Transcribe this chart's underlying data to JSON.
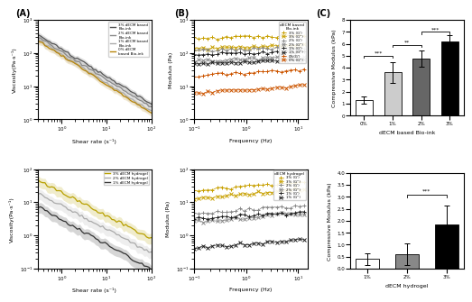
{
  "panel_A_top": {
    "title": "(A)",
    "xlabel": "Shear rate (s⁻¹)",
    "ylabel": "Viscosity(Pa·s⁻¹)",
    "xlim": [
      0.3,
      100
    ],
    "ylim": [
      1,
      1000
    ],
    "legend": [
      "3% dECM based\nBio-ink",
      "2% dECM based\nBio-ink",
      "1% dECM based\nBio-ink",
      "0% dECM\nbased Bio-ink"
    ],
    "colors": [
      "#555555",
      "#888888",
      "#aaaaaa",
      "#b8860b"
    ],
    "eta0": [
      130,
      110,
      90,
      85
    ],
    "powers": [
      0.82,
      0.84,
      0.86,
      0.88
    ]
  },
  "panel_A_bot": {
    "xlabel": "Shear rate (s⁻¹)",
    "ylabel": "Viscosity(Pa·s⁻¹)",
    "xlim": [
      0.3,
      100
    ],
    "ylim": [
      0.1,
      100
    ],
    "legend": [
      "3% dECM hydrogel",
      "2% dECM hydrogel",
      "1% dECM hydrogel"
    ],
    "colors": [
      "#b8a000",
      "#aaaaaa",
      "#333333"
    ],
    "eta0": [
      20,
      8,
      3
    ],
    "powers": [
      0.7,
      0.72,
      0.75
    ]
  },
  "panel_B_top": {
    "title": "(B)",
    "xlabel": "Frequency (Hz)",
    "ylabel": "Modulus (Pa)",
    "xlim": [
      0.1,
      15
    ],
    "ylim": [
      1,
      1000
    ],
    "legend_title": "dECM based\nBio-ink",
    "legend": [
      "3% (G')",
      "3% (G'')",
      "2% (G')",
      "2% (G'')",
      "1% (G')",
      "1% (G'')",
      "0%(G')",
      "0% (G'')"
    ],
    "G0": [
      300,
      150,
      130,
      65,
      100,
      55,
      25,
      8
    ],
    "slopes": [
      0.04,
      0.06,
      0.04,
      0.06,
      0.03,
      0.05,
      0.08,
      0.1
    ],
    "colors": [
      "#c8a000",
      "#c8a000",
      "#888888",
      "#888888",
      "#222222",
      "#222222",
      "#cc5500",
      "#cc5500"
    ],
    "markers": [
      "+",
      "x",
      "+",
      "x",
      "+",
      "x",
      "+",
      "x"
    ]
  },
  "panel_B_bot": {
    "xlabel": "Frequency (Hz)",
    "ylabel": "Modulus (Pa)",
    "xlim": [
      0.1,
      15
    ],
    "ylim": [
      0.1,
      100
    ],
    "legend_title": "dECM hydrogel",
    "legend": [
      "3% (G')",
      "3% (G'')",
      "2% (G')",
      "2% (G'')",
      "1% (G')",
      "1% (G'')"
    ],
    "G0": [
      30,
      18,
      6,
      3.5,
      4,
      0.55
    ],
    "slopes": [
      0.12,
      0.15,
      0.1,
      0.12,
      0.08,
      0.12
    ],
    "colors": [
      "#c8a000",
      "#c8a000",
      "#888888",
      "#888888",
      "#222222",
      "#222222"
    ],
    "markers": [
      "+",
      "x",
      "+",
      "x",
      "+",
      "x"
    ]
  },
  "panel_C_top": {
    "title": "(C)",
    "ylabel": "Compressive Modulus (kPa)",
    "xlabel": "dECM based Bio-ink",
    "categories": [
      "0%",
      "1%",
      "2%",
      "3%"
    ],
    "values": [
      1.3,
      3.6,
      4.75,
      6.2
    ],
    "errors": [
      0.3,
      0.85,
      0.65,
      0.5
    ],
    "colors": [
      "#ffffff",
      "#cccccc",
      "#666666",
      "#000000"
    ],
    "ylim": [
      0,
      8
    ],
    "sig_lines": [
      {
        "x1": 0,
        "x2": 1,
        "y": 5.0,
        "label": "***"
      },
      {
        "x1": 1,
        "x2": 2,
        "y": 5.9,
        "label": "**"
      },
      {
        "x1": 2,
        "x2": 3,
        "y": 7.0,
        "label": "***"
      }
    ]
  },
  "panel_C_bot": {
    "ylabel": "Compressive Modulus (kPa)",
    "xlabel": "dECM hydrogel",
    "categories": [
      "1%",
      "2%",
      "3%"
    ],
    "values": [
      0.4,
      0.6,
      1.85
    ],
    "errors": [
      0.25,
      0.45,
      0.8
    ],
    "colors": [
      "#ffffff",
      "#888888",
      "#000000"
    ],
    "ylim": [
      0,
      4
    ],
    "sig_lines": [
      {
        "x1": 1,
        "x2": 2,
        "y": 3.1,
        "label": "***"
      }
    ]
  }
}
